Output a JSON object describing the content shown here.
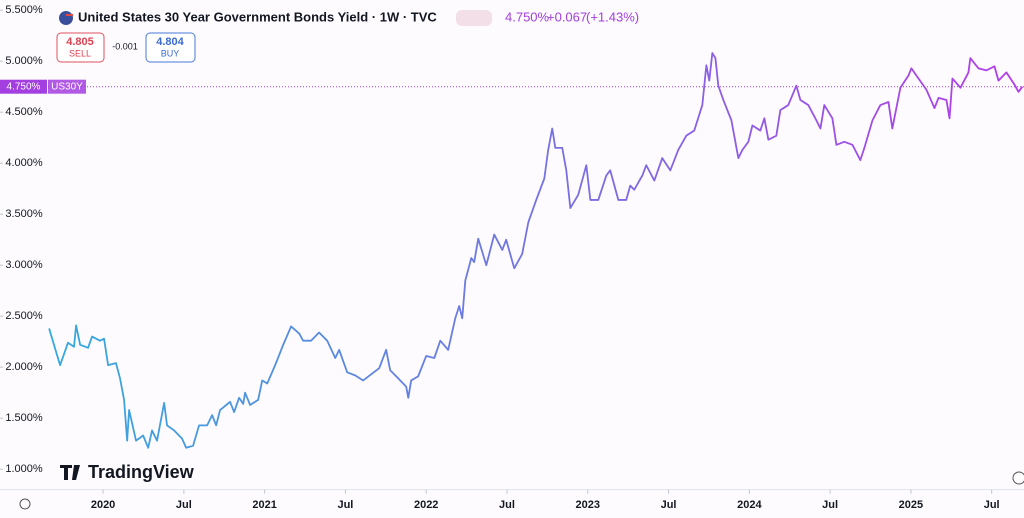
{
  "header": {
    "title": "United States 30 Year Government Bonds Yield · 1W · TVC",
    "price": "4.750%",
    "change": "+0.067",
    "change_pct": "(+1.43%)",
    "sell_price": "4.805",
    "sell_label": "SELL",
    "spread": "-0.001",
    "buy_price": "4.804",
    "buy_label": "BUY",
    "watermark": "TradingView"
  },
  "chart_data": {
    "type": "line",
    "xlim": [
      2019.362,
      2025.7
    ],
    "ylim": [
      0.8,
      5.6
    ],
    "xticks": [
      {
        "value": 2020,
        "label": "2020"
      },
      {
        "value": 2020.5,
        "label": "Jul"
      },
      {
        "value": 2021,
        "label": "2021"
      },
      {
        "value": 2021.5,
        "label": "Jul"
      },
      {
        "value": 2022,
        "label": "2022"
      },
      {
        "value": 2022.5,
        "label": "Jul"
      },
      {
        "value": 2023,
        "label": "2023"
      },
      {
        "value": 2023.5,
        "label": "Jul"
      },
      {
        "value": 2024,
        "label": "2024"
      },
      {
        "value": 2024.5,
        "label": "Jul"
      },
      {
        "value": 2025,
        "label": "2025"
      },
      {
        "value": 2025.5,
        "label": "Jul"
      }
    ],
    "yticks": [
      {
        "value": 1,
        "label": "1.000%"
      },
      {
        "value": 1.5,
        "label": "1.500%"
      },
      {
        "value": 2,
        "label": "2.000%"
      },
      {
        "value": 2.5,
        "label": "2.500%"
      },
      {
        "value": 3,
        "label": "3.000%"
      },
      {
        "value": 3.5,
        "label": "3.500%"
      },
      {
        "value": 4,
        "label": "4.000%"
      },
      {
        "value": 4.5,
        "label": "4.500%"
      },
      {
        "value": 5,
        "label": "5.000%"
      },
      {
        "value": 5.5,
        "label": "5.500%"
      }
    ],
    "price_line": {
      "value": 4.75,
      "label": "4.750%",
      "symbol": "US30Y",
      "color": "#a33ee0"
    },
    "series": [
      {
        "name": "US30Y",
        "colors": [
          "#35aadc",
          "#b43ce8"
        ],
        "x": [
          2019.666,
          2019.715,
          2019.734,
          2019.783,
          2019.82,
          2019.833,
          2019.858,
          2019.907,
          2019.932,
          2019.981,
          2020.006,
          2020.031,
          2020.08,
          2020.105,
          2020.13,
          2020.149,
          2020.161,
          2020.204,
          2020.248,
          2020.279,
          2020.303,
          2020.334,
          2020.378,
          2020.396,
          2020.44,
          2020.489,
          2020.514,
          2020.557,
          2020.594,
          2020.644,
          2020.675,
          2020.7,
          2020.724,
          2020.786,
          2020.811,
          2020.842,
          2020.867,
          2020.879,
          2020.91,
          2020.96,
          2020.985,
          2021.016,
          2021.065,
          2021.115,
          2021.164,
          2021.214,
          2021.238,
          2021.288,
          2021.337,
          2021.387,
          2021.437,
          2021.461,
          2021.511,
          2021.56,
          2021.61,
          2021.659,
          2021.709,
          2021.752,
          2021.777,
          2021.827,
          2021.876,
          2021.889,
          2021.907,
          2021.95,
          2022.0,
          2022.05,
          2022.087,
          2022.136,
          2022.18,
          2022.204,
          2022.223,
          2022.242,
          2022.279,
          2022.297,
          2022.322,
          2022.372,
          2022.421,
          2022.471,
          2022.495,
          2022.545,
          2022.594,
          2022.632,
          2022.681,
          2022.731,
          2022.755,
          2022.78,
          2022.799,
          2022.842,
          2022.867,
          2022.892,
          2022.941,
          2022.991,
          2023.016,
          2023.065,
          2023.115,
          2023.139,
          2023.189,
          2023.238,
          2023.263,
          2023.288,
          2023.338,
          2023.362,
          2023.412,
          2023.461,
          2023.511,
          2023.56,
          2023.61,
          2023.659,
          2023.709,
          2023.734,
          2023.752,
          2023.771,
          2023.79,
          2023.808,
          2023.839,
          2023.889,
          2023.932,
          2023.957,
          2023.994,
          2024.019,
          2024.068,
          2024.093,
          2024.118,
          2024.167,
          2024.192,
          2024.241,
          2024.291,
          2024.316,
          2024.365,
          2024.415,
          2024.44,
          2024.464,
          2024.514,
          2024.539,
          2024.588,
          2024.638,
          2024.687,
          2024.712,
          2024.762,
          2024.811,
          2024.861,
          2024.885,
          2024.935,
          2024.985,
          2025.003,
          2025.047,
          2025.096,
          2025.146,
          2025.171,
          2025.22,
          2025.239,
          2025.257,
          2025.307,
          2025.356,
          2025.368,
          2025.418,
          2025.467,
          2025.517,
          2025.542,
          2025.591,
          2025.641,
          2025.666,
          2025.69
        ],
        "values": [
          2.38,
          2.12,
          2.02,
          2.24,
          2.2,
          2.41,
          2.22,
          2.19,
          2.3,
          2.26,
          2.28,
          2.02,
          2.04,
          1.89,
          1.68,
          1.28,
          1.58,
          1.28,
          1.33,
          1.21,
          1.38,
          1.28,
          1.65,
          1.43,
          1.38,
          1.3,
          1.21,
          1.23,
          1.43,
          1.43,
          1.53,
          1.43,
          1.58,
          1.66,
          1.56,
          1.7,
          1.64,
          1.75,
          1.63,
          1.68,
          1.87,
          1.84,
          2.02,
          2.22,
          2.4,
          2.33,
          2.26,
          2.26,
          2.34,
          2.26,
          2.09,
          2.17,
          1.95,
          1.92,
          1.87,
          1.93,
          1.99,
          2.17,
          1.97,
          1.89,
          1.81,
          1.7,
          1.87,
          1.91,
          2.11,
          2.09,
          2.26,
          2.17,
          2.48,
          2.6,
          2.48,
          2.85,
          3.07,
          3.03,
          3.26,
          3.0,
          3.3,
          3.15,
          3.25,
          2.97,
          3.11,
          3.42,
          3.64,
          3.85,
          4.13,
          4.34,
          4.15,
          4.15,
          3.93,
          3.56,
          3.69,
          3.98,
          3.64,
          3.64,
          3.88,
          3.93,
          3.64,
          3.64,
          3.78,
          3.74,
          3.88,
          3.98,
          3.83,
          4.05,
          3.93,
          4.13,
          4.27,
          4.32,
          4.57,
          4.96,
          4.81,
          5.08,
          5.03,
          4.76,
          4.62,
          4.42,
          4.05,
          4.13,
          4.21,
          4.37,
          4.32,
          4.44,
          4.23,
          4.27,
          4.52,
          4.57,
          4.76,
          4.62,
          4.57,
          4.42,
          4.34,
          4.57,
          4.44,
          4.18,
          4.21,
          4.18,
          4.03,
          4.15,
          4.42,
          4.57,
          4.6,
          4.34,
          4.74,
          4.86,
          4.93,
          4.83,
          4.72,
          4.54,
          4.64,
          4.62,
          4.44,
          4.83,
          4.74,
          4.89,
          5.03,
          4.93,
          4.91,
          4.95,
          4.81,
          4.89,
          4.77,
          4.7,
          4.75
        ]
      }
    ]
  }
}
